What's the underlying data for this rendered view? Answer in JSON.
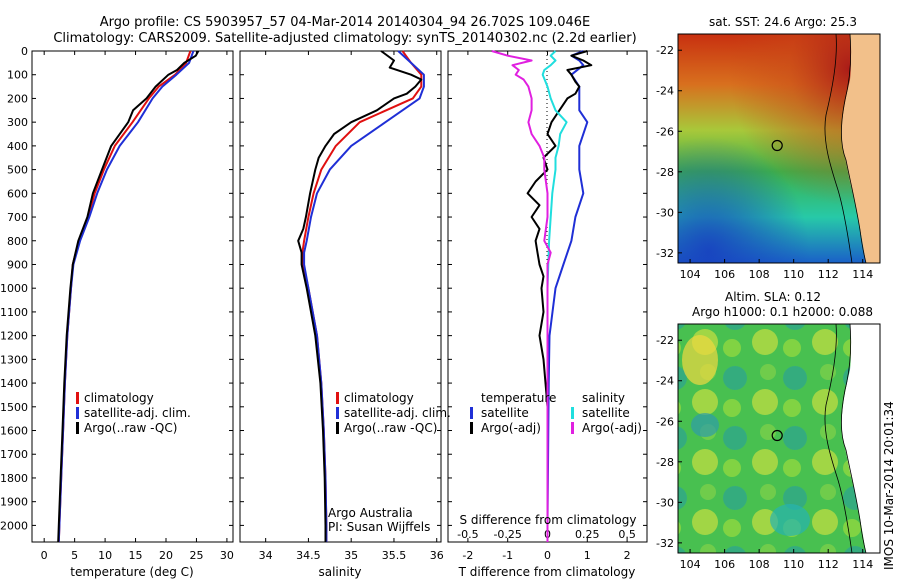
{
  "header": {
    "line1": "Argo profile: CS 5903957_57 04-Mar-2014 20140304_94 26.702S 109.046E",
    "line2": "Climatology: CARS2009. Satellite-adjusted climatology: synTS_20140302.nc (2.2d earlier)"
  },
  "footer": {
    "credit": "IMOS 10-Mar-2014 20:01:34"
  },
  "colors": {
    "climatology": "#e01010",
    "satellite": "#1f2fd6",
    "argo": "#000000",
    "salinity_satellite": "#20dede",
    "salinity_argo": "#e020e0"
  },
  "chart_data": [
    {
      "type": "line",
      "xlabel": "temperature (deg C)",
      "ylabel": "",
      "xlim": [
        -2,
        31
      ],
      "ylim": [
        2070,
        0
      ],
      "xticks": [
        "0",
        "5",
        "10",
        "15",
        "20",
        "25",
        "30"
      ],
      "yticks": [
        "0",
        "100",
        "200",
        "300",
        "400",
        "500",
        "600",
        "700",
        "800",
        "900",
        "1000",
        "1100",
        "1200",
        "1300",
        "1400",
        "1500",
        "1600",
        "1700",
        "1800",
        "1900",
        "2000"
      ],
      "legend": [
        "climatology",
        "satellite-adj. clim.",
        "Argo(..raw -QC)"
      ],
      "series": [
        {
          "name": "climatology",
          "depth": [
            0,
            50,
            100,
            150,
            200,
            300,
            400,
            500,
            600,
            700,
            800,
            900,
            1000,
            1200,
            1400,
            1600,
            1800,
            2000,
            2070
          ],
          "values": [
            24.0,
            23.3,
            21.5,
            18.8,
            17.2,
            14.5,
            11.6,
            9.8,
            8.3,
            7.2,
            5.7,
            4.7,
            4.4,
            3.8,
            3.4,
            3.1,
            2.8,
            2.5,
            2.4
          ]
        },
        {
          "name": "satellite-adj. clim.",
          "depth": [
            0,
            50,
            100,
            150,
            200,
            300,
            400,
            500,
            600,
            700,
            800,
            900,
            1000,
            1200,
            1400,
            1600,
            1800,
            2000,
            2070
          ],
          "values": [
            24.5,
            23.8,
            21.7,
            19.4,
            17.8,
            15.4,
            12.4,
            10.3,
            8.7,
            7.4,
            5.9,
            4.8,
            4.4,
            3.8,
            3.4,
            3.1,
            2.8,
            2.5,
            2.4
          ]
        },
        {
          "name": "Argo(..raw -QC)",
          "depth": [
            0,
            20,
            50,
            80,
            100,
            150,
            200,
            250,
            300,
            400,
            500,
            600,
            700,
            800,
            900,
            1000,
            1200,
            1400,
            1600,
            1800,
            2000,
            2070
          ],
          "values": [
            25.3,
            24.9,
            23.0,
            21.8,
            20.4,
            18.3,
            16.8,
            14.6,
            13.8,
            11.0,
            9.5,
            8.0,
            7.1,
            5.6,
            4.7,
            4.3,
            3.7,
            3.3,
            3.0,
            2.7,
            2.4,
            2.3
          ]
        }
      ]
    },
    {
      "type": "line",
      "xlabel": "salinity",
      "ylabel": "",
      "xlim": [
        33.7,
        36.05
      ],
      "ylim": [
        2070,
        0
      ],
      "xticks": [
        "34",
        "34.5",
        "35",
        "35.5",
        "36"
      ],
      "legend": [
        "climatology",
        "satellite-adj. clim.",
        "Argo(..raw -QC)"
      ],
      "annotations": [
        "Argo Australia",
        "PI: Susan Wijffels"
      ],
      "series": [
        {
          "name": "climatology",
          "depth": [
            0,
            50,
            100,
            150,
            200,
            300,
            400,
            500,
            600,
            700,
            800,
            850,
            900,
            1000,
            1200,
            1400,
            1600,
            1800,
            2000,
            2070
          ],
          "values": [
            35.6,
            35.7,
            35.82,
            35.82,
            35.72,
            35.1,
            34.82,
            34.65,
            34.56,
            34.5,
            34.45,
            34.43,
            34.44,
            34.5,
            34.6,
            34.65,
            34.68,
            34.7,
            34.71,
            34.71
          ]
        },
        {
          "name": "satellite-adj. clim.",
          "depth": [
            0,
            50,
            100,
            150,
            200,
            300,
            400,
            500,
            600,
            700,
            800,
            850,
            900,
            1000,
            1200,
            1400,
            1600,
            1800,
            2000,
            2070
          ],
          "values": [
            35.55,
            35.7,
            35.85,
            35.85,
            35.8,
            35.4,
            35.0,
            34.75,
            34.6,
            34.53,
            34.48,
            34.45,
            34.45,
            34.5,
            34.6,
            34.65,
            34.68,
            34.7,
            34.71,
            34.71
          ]
        },
        {
          "name": "Argo(..raw -QC)",
          "depth": [
            0,
            40,
            70,
            100,
            120,
            150,
            180,
            200,
            250,
            300,
            350,
            400,
            450,
            500,
            600,
            700,
            750,
            800,
            850,
            900,
            1000,
            1200,
            1400,
            1600,
            1800,
            2000,
            2070
          ],
          "values": [
            35.35,
            35.5,
            35.45,
            35.7,
            35.82,
            35.75,
            35.65,
            35.5,
            35.3,
            35.0,
            34.8,
            34.7,
            34.62,
            34.58,
            34.52,
            34.47,
            34.44,
            34.38,
            34.42,
            34.42,
            34.48,
            34.58,
            34.64,
            34.67,
            34.69,
            34.7,
            34.7
          ]
        }
      ]
    },
    {
      "type": "line",
      "xlabel": "T difference from climatology",
      "x2label": "S difference from climatology",
      "xlim": [
        -2.5,
        2.5
      ],
      "x2lim": [
        -0.625,
        0.625
      ],
      "ylim": [
        2070,
        0
      ],
      "xticks": [
        "-2",
        "-1",
        "0",
        "1",
        "2"
      ],
      "x2ticks": [
        "-0.5",
        "-0.25",
        "0",
        "0.25",
        "0.5"
      ],
      "legend": [
        "temperature",
        "satellite",
        "Argo(-adj)",
        "salinity",
        "satellite",
        "Argo(-adj)"
      ],
      "series": [
        {
          "name": "satellite",
          "depth": [
            0,
            20,
            40,
            60,
            100,
            150,
            200,
            250,
            300,
            400,
            500,
            600,
            700,
            800,
            900,
            1000,
            1200,
            1400,
            1600,
            1800,
            2000,
            2070
          ],
          "values": [
            0.9,
            0.6,
            0.8,
            0.9,
            0.6,
            0.8,
            0.8,
            0.8,
            1.0,
            0.8,
            0.8,
            0.9,
            0.7,
            0.6,
            0.4,
            0.2,
            0.05,
            0.03,
            0.02,
            0.01,
            0.0,
            0.0
          ]
        },
        {
          "name": "Argo(-adj)",
          "depth": [
            0,
            20,
            40,
            60,
            80,
            100,
            130,
            150,
            180,
            200,
            250,
            300,
            350,
            400,
            450,
            500,
            550,
            600,
            650,
            700,
            750,
            800,
            850,
            900,
            950,
            1000,
            1100,
            1200,
            1300,
            1400,
            1500,
            1600,
            1800,
            2000,
            2070
          ],
          "values": [
            1.0,
            0.6,
            0.9,
            1.1,
            0.5,
            0.6,
            0.7,
            0.8,
            0.7,
            0.5,
            0.3,
            0.1,
            0.0,
            0.2,
            -0.1,
            0.0,
            -0.3,
            -0.5,
            -0.2,
            -0.4,
            -0.2,
            -0.3,
            -0.25,
            -0.2,
            -0.1,
            -0.15,
            -0.1,
            -0.2,
            -0.1,
            -0.05,
            0.0,
            0.0,
            0.0,
            0.0,
            0.0
          ]
        },
        {
          "name": "satellite (salinity)",
          "depth": [
            0,
            20,
            40,
            60,
            80,
            100,
            150,
            200,
            250,
            300,
            350,
            400,
            450,
            500,
            600,
            700,
            800,
            900,
            1000,
            1200,
            1400,
            1600,
            1800,
            2000,
            2070
          ],
          "values": [
            0.05,
            0.02,
            0.05,
            0.02,
            -0.02,
            -0.03,
            0.0,
            0.02,
            0.05,
            0.12,
            0.08,
            0.07,
            0.05,
            0.05,
            0.03,
            0.02,
            0.01,
            0.005,
            0.0,
            0.0,
            0.0,
            0.0,
            0.0,
            0.0,
            0.0
          ]
        },
        {
          "name": "Argo(-adj) (salinity)",
          "depth": [
            0,
            20,
            40,
            60,
            80,
            100,
            120,
            150,
            200,
            250,
            300,
            350,
            400,
            450,
            500,
            600,
            700,
            800,
            850,
            900,
            1000,
            1200,
            1400,
            1600,
            1800,
            2000,
            2070
          ],
          "values": [
            -0.35,
            -0.25,
            -0.1,
            -0.22,
            -0.18,
            -0.2,
            -0.15,
            -0.12,
            -0.1,
            -0.1,
            -0.12,
            -0.1,
            -0.05,
            -0.02,
            -0.02,
            0.0,
            0.0,
            -0.02,
            0.02,
            0.0,
            0.0,
            0.0,
            0.0,
            0.0,
            0.0,
            0.0,
            0.0
          ]
        }
      ]
    },
    {
      "type": "heatmap",
      "title": "sat. SST: 24.6 Argo: 25.3",
      "xticks": [
        "104",
        "106",
        "108",
        "110",
        "112",
        "114"
      ],
      "yticks": [
        "-22",
        "-24",
        "-26",
        "-28",
        "-30",
        "-32"
      ],
      "xlim": [
        103.3,
        115
      ],
      "ylim": [
        -32.5,
        -21.2
      ],
      "marker": {
        "lon": 109.046,
        "lat": -26.702
      }
    },
    {
      "type": "heatmap",
      "title": "Altim. SLA: 0.12",
      "subtitle": "Argo h1000: 0.1 h2000: 0.088",
      "xticks": [
        "104",
        "106",
        "108",
        "110",
        "112",
        "114"
      ],
      "yticks": [
        "-22",
        "-24",
        "-26",
        "-28",
        "-30",
        "-32"
      ],
      "xlim": [
        103.3,
        115
      ],
      "ylim": [
        -32.5,
        -21.2
      ],
      "marker": {
        "lon": 109.046,
        "lat": -26.702
      }
    }
  ]
}
